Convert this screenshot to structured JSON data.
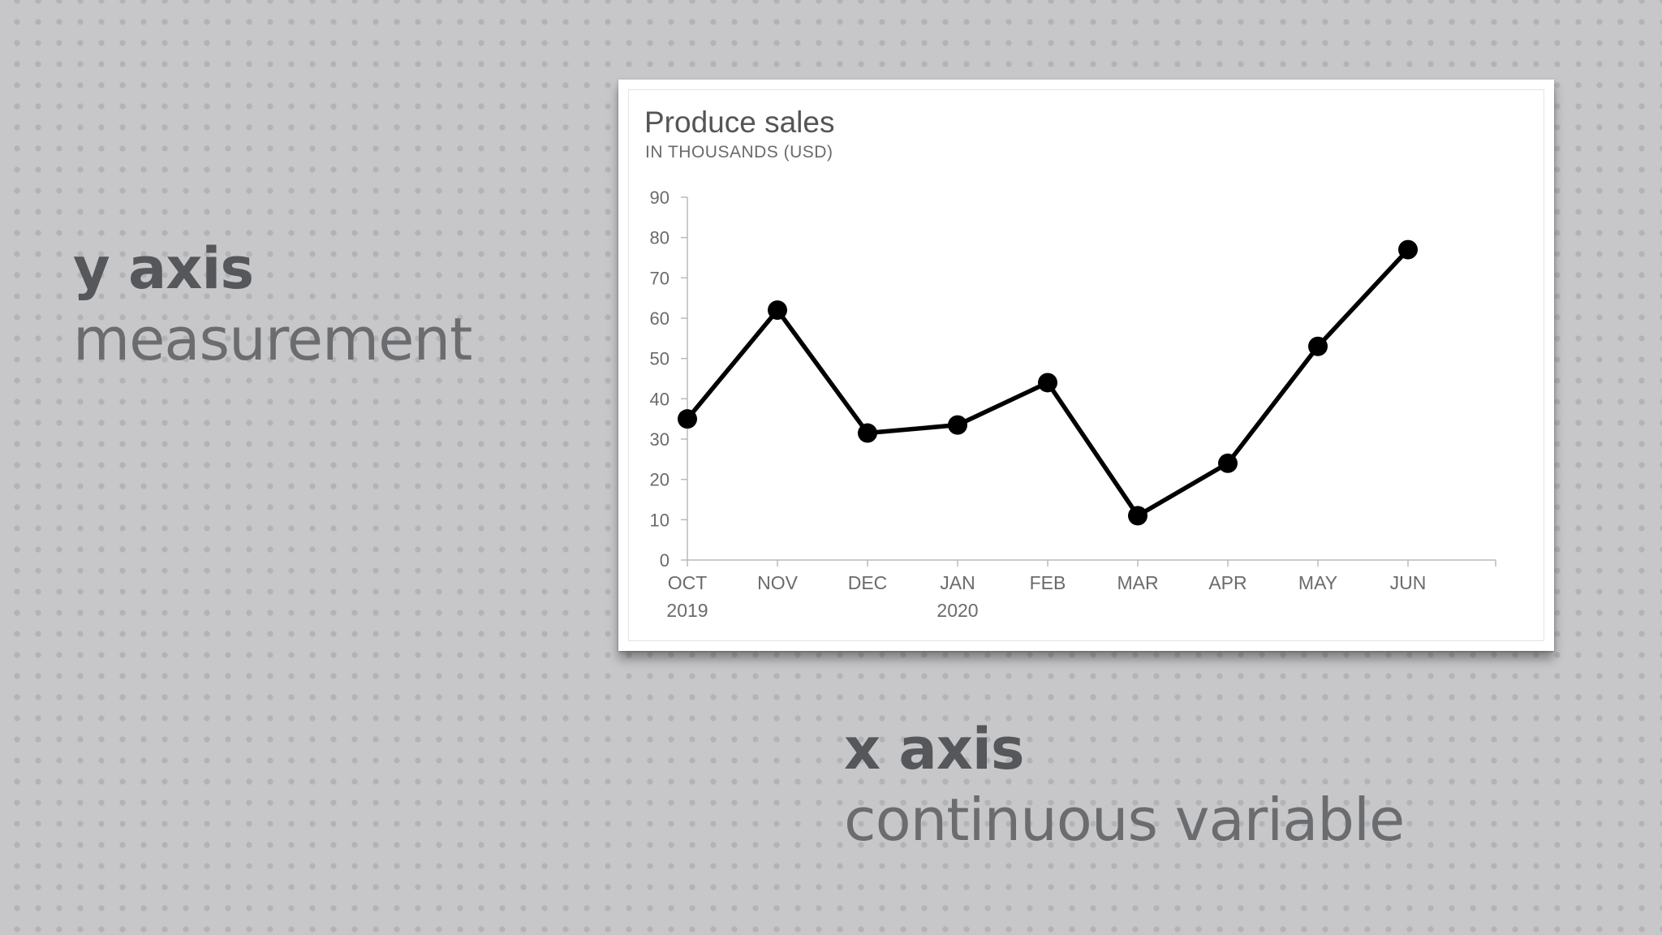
{
  "callouts": {
    "y_axis": {
      "term": "y axis",
      "description": "measurement"
    },
    "x_axis": {
      "term": "x axis",
      "description": "continuous variable"
    }
  },
  "chart_data": {
    "type": "line",
    "title": "Produce sales",
    "subtitle": "IN THOUSANDS (USD)",
    "xlabel": "",
    "ylabel": "",
    "categories": [
      "OCT",
      "NOV",
      "DEC",
      "JAN",
      "FEB",
      "MAR",
      "APR",
      "MAY",
      "JUN"
    ],
    "category_sublabels": [
      "2019",
      "",
      "",
      "2020",
      "",
      "",
      "",
      "",
      ""
    ],
    "series": [
      {
        "values": [
          35,
          62,
          31.5,
          33.5,
          44,
          11,
          24,
          53,
          77
        ]
      }
    ],
    "ylim": [
      0,
      90
    ],
    "yticks": [
      0,
      10,
      20,
      30,
      40,
      50,
      60,
      70,
      80,
      90
    ],
    "grid": false,
    "legend": "none",
    "line_color": "#000000",
    "axis_color": "#bbbbbb"
  }
}
